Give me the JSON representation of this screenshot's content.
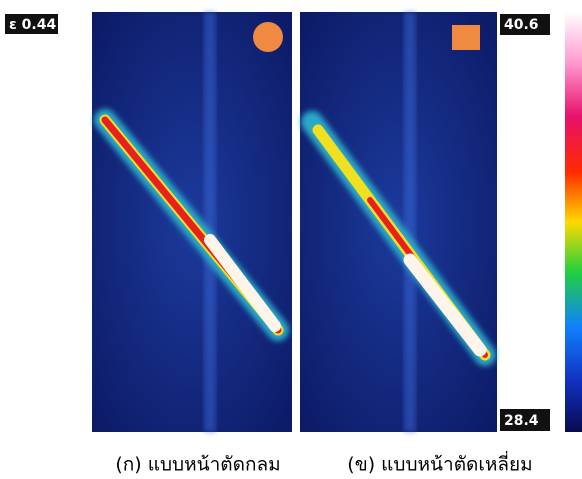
{
  "emissivity": "ε 0.44",
  "scale": {
    "max": "40.6",
    "min": "28.4"
  },
  "captions": [
    "(ก) แบบหน้าตัดกลม",
    "(ข) แบบหน้าตัดเหลี่ยม"
  ]
}
